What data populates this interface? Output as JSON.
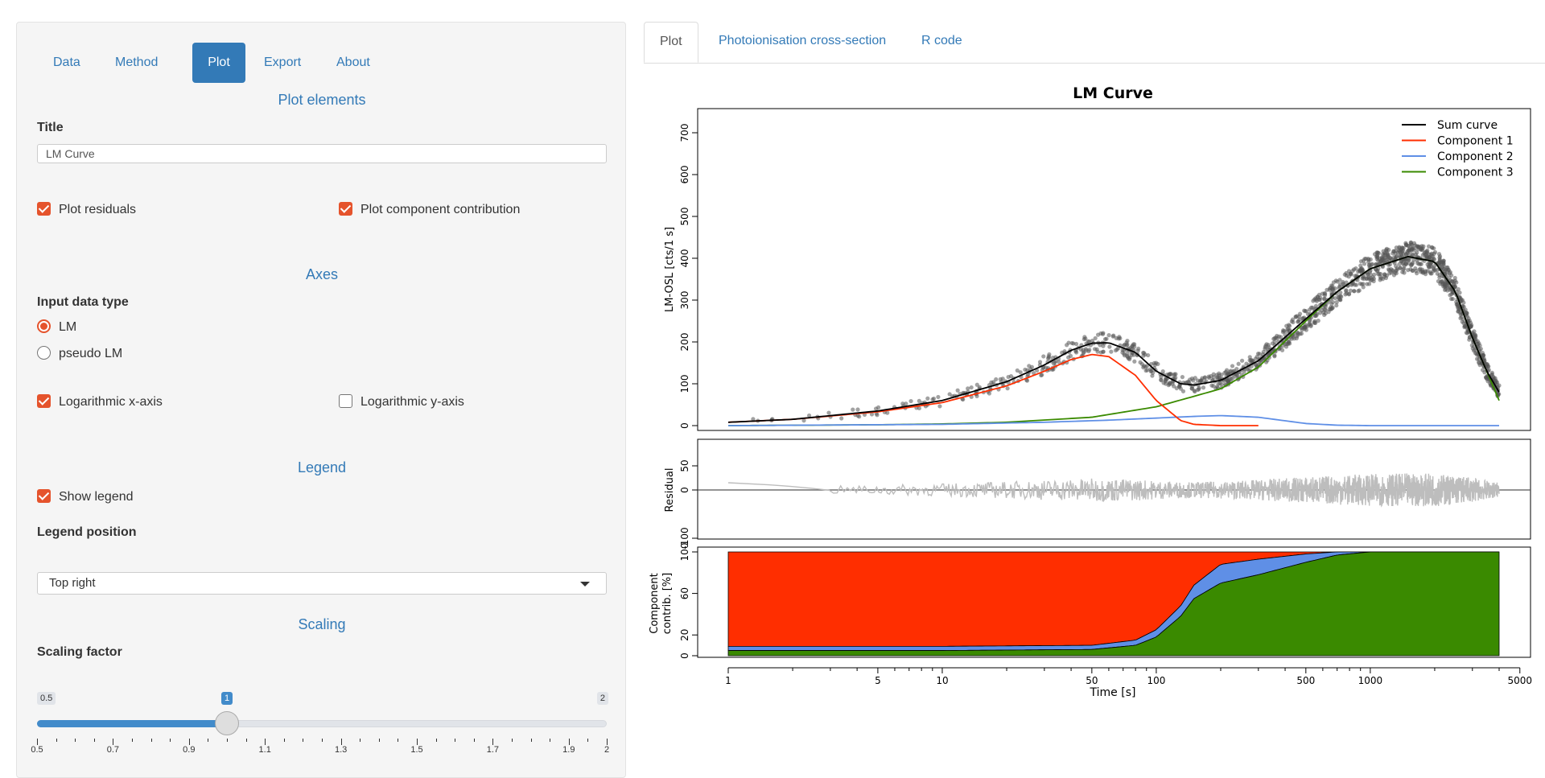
{
  "left_panel": {
    "nav_tabs": [
      {
        "label": "Data",
        "active": false
      },
      {
        "label": "Method",
        "active": false
      },
      {
        "label": "Plot",
        "active": true
      },
      {
        "label": "Export",
        "active": false
      },
      {
        "label": "About",
        "active": false
      }
    ],
    "plot_elements": {
      "heading": "Plot elements",
      "title_label": "Title",
      "title_value": "LM Curve",
      "plot_residuals": {
        "label": "Plot residuals",
        "checked": true
      },
      "plot_component_contribution": {
        "label": "Plot component contribution",
        "checked": true
      }
    },
    "axes": {
      "heading": "Axes",
      "input_type_label": "Input data type",
      "options": [
        {
          "label": "LM",
          "selected": true
        },
        {
          "label": "pseudo LM",
          "selected": false
        }
      ],
      "log_x": {
        "label": "Logarithmic x-axis",
        "checked": true
      },
      "log_y": {
        "label": "Logarithmic y-axis",
        "checked": false
      }
    },
    "legend": {
      "heading": "Legend",
      "show_legend": {
        "label": "Show legend",
        "checked": true
      },
      "position_label": "Legend position",
      "position_value": "Top right"
    },
    "scaling": {
      "heading": "Scaling",
      "factor_label": "Scaling factor",
      "min": "0.5",
      "max": "2",
      "value": "1",
      "value_num": 1,
      "min_num": 0.5,
      "max_num": 2,
      "tick_labels": [
        "0.5",
        "0.7",
        "0.9",
        "1.1",
        "1.3",
        "1.5",
        "1.7",
        "1.9",
        "2"
      ]
    }
  },
  "right_panel": {
    "tabs": [
      {
        "label": "Plot",
        "active": true
      },
      {
        "label": "Photoionisation cross-section",
        "active": false
      },
      {
        "label": "R code",
        "active": false
      }
    ]
  },
  "chart_data": [
    {
      "type": "scatter",
      "panel": "main",
      "title": "LM Curve",
      "ylabel": "LM-OSL [cts/1 s]",
      "xlabel": "",
      "x_scale": "log",
      "xlim": [
        1,
        4000
      ],
      "ylim": [
        0,
        730
      ],
      "yticks": [
        0,
        100,
        200,
        300,
        400,
        500,
        600,
        700
      ],
      "legend_position": "top-right",
      "series": [
        {
          "name": "Sum curve",
          "color": "#000000",
          "x": [
            1,
            2,
            5,
            10,
            20,
            30,
            40,
            50,
            60,
            80,
            100,
            130,
            150,
            200,
            300,
            500,
            700,
            1000,
            1500,
            2000,
            2500,
            3000,
            3500,
            4000
          ],
          "y": [
            8,
            15,
            35,
            60,
            105,
            145,
            180,
            197,
            198,
            175,
            130,
            100,
            97,
            108,
            155,
            255,
            320,
            375,
            404,
            392,
            320,
            210,
            130,
            80
          ]
        },
        {
          "name": "Component 1",
          "color": "#FF2E00",
          "x": [
            1,
            2,
            5,
            10,
            20,
            30,
            40,
            50,
            60,
            80,
            100,
            130,
            150,
            200,
            300
          ],
          "y": [
            8,
            15,
            33,
            55,
            95,
            130,
            158,
            170,
            165,
            120,
            60,
            12,
            3,
            0,
            0
          ]
        },
        {
          "name": "Component 2",
          "color": "#5F8FE6",
          "x": [
            1,
            10,
            30,
            60,
            100,
            150,
            200,
            300,
            500,
            700,
            1000,
            4000
          ],
          "y": [
            0,
            3,
            8,
            13,
            18,
            22,
            24,
            20,
            5,
            1,
            0,
            0
          ]
        },
        {
          "name": "Component 3",
          "color": "#3A8A00",
          "x": [
            1,
            5,
            10,
            20,
            50,
            100,
            150,
            200,
            300,
            500,
            700,
            1000,
            1500,
            2000,
            2500,
            3000,
            3500,
            4000
          ],
          "y": [
            0,
            2,
            4,
            8,
            20,
            45,
            70,
            88,
            140,
            250,
            320,
            375,
            404,
            392,
            320,
            210,
            130,
            60
          ]
        }
      ]
    },
    {
      "type": "line",
      "panel": "residuals",
      "ylabel": "Residual",
      "ylim": [
        -100,
        100
      ],
      "yticks": [
        50,
        0,
        -100
      ],
      "x_scale": "log",
      "color": "#BDBDBD"
    },
    {
      "type": "area",
      "panel": "component contribution",
      "ylabel": "Component contrib. [%]",
      "xlabel": "Time [s]",
      "x_scale": "log",
      "ylim": [
        0,
        100
      ],
      "yticks": [
        0,
        20,
        60,
        100
      ],
      "xticks": [
        1,
        5,
        10,
        50,
        100,
        500,
        1000,
        5000
      ],
      "x": [
        1,
        10,
        50,
        80,
        100,
        130,
        150,
        200,
        300,
        500,
        700,
        1000,
        4000
      ],
      "series": [
        {
          "name": "Component 3",
          "color": "#3A8A00",
          "values": [
            5,
            5,
            6,
            10,
            18,
            38,
            55,
            70,
            78,
            90,
            97,
            100,
            100
          ]
        },
        {
          "name": "Component 2",
          "color": "#5F8FE6",
          "values": [
            4,
            4,
            4,
            5,
            7,
            10,
            13,
            18,
            15,
            8,
            3,
            0,
            0
          ]
        },
        {
          "name": "Component 1",
          "color": "#FF2E00",
          "values": [
            91,
            91,
            90,
            85,
            75,
            52,
            32,
            12,
            7,
            2,
            0,
            0,
            0
          ]
        }
      ]
    }
  ]
}
